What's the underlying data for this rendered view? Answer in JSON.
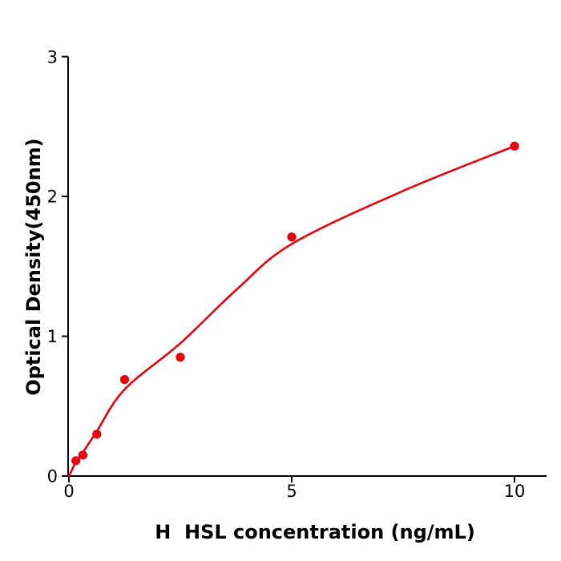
{
  "chart_data": {
    "type": "scatter",
    "title": "",
    "xlabel": "H  HSL concentration (ng/mL)",
    "ylabel": "Optical Density(450nm)",
    "xlim": [
      0,
      10.7
    ],
    "ylim": [
      0,
      3
    ],
    "xticks": [
      0,
      5,
      10
    ],
    "yticks": [
      0,
      1,
      2,
      3
    ],
    "grid": false,
    "legend": "none",
    "axis_color": "#000000",
    "series": [
      {
        "name": "standard-points",
        "type": "scatter",
        "color": "#e8000b",
        "marker": "circle",
        "points": [
          {
            "x": 0.156,
            "y": 0.11
          },
          {
            "x": 0.313,
            "y": 0.15
          },
          {
            "x": 0.625,
            "y": 0.3
          },
          {
            "x": 1.25,
            "y": 0.69
          },
          {
            "x": 2.5,
            "y": 0.85
          },
          {
            "x": 5,
            "y": 1.71
          },
          {
            "x": 10,
            "y": 2.36
          }
        ]
      },
      {
        "name": "fit-curve",
        "type": "line",
        "color": "#e8000b",
        "curve_samples": [
          {
            "x": 0,
            "y": 0.0
          },
          {
            "x": 0.156,
            "y": 0.1
          },
          {
            "x": 0.313,
            "y": 0.17
          },
          {
            "x": 0.625,
            "y": 0.32
          },
          {
            "x": 1.25,
            "y": 0.62
          },
          {
            "x": 2.5,
            "y": 0.95
          },
          {
            "x": 3.75,
            "y": 1.33
          },
          {
            "x": 5,
            "y": 1.66
          },
          {
            "x": 7.5,
            "y": 2.04
          },
          {
            "x": 10,
            "y": 2.36
          }
        ]
      }
    ]
  }
}
